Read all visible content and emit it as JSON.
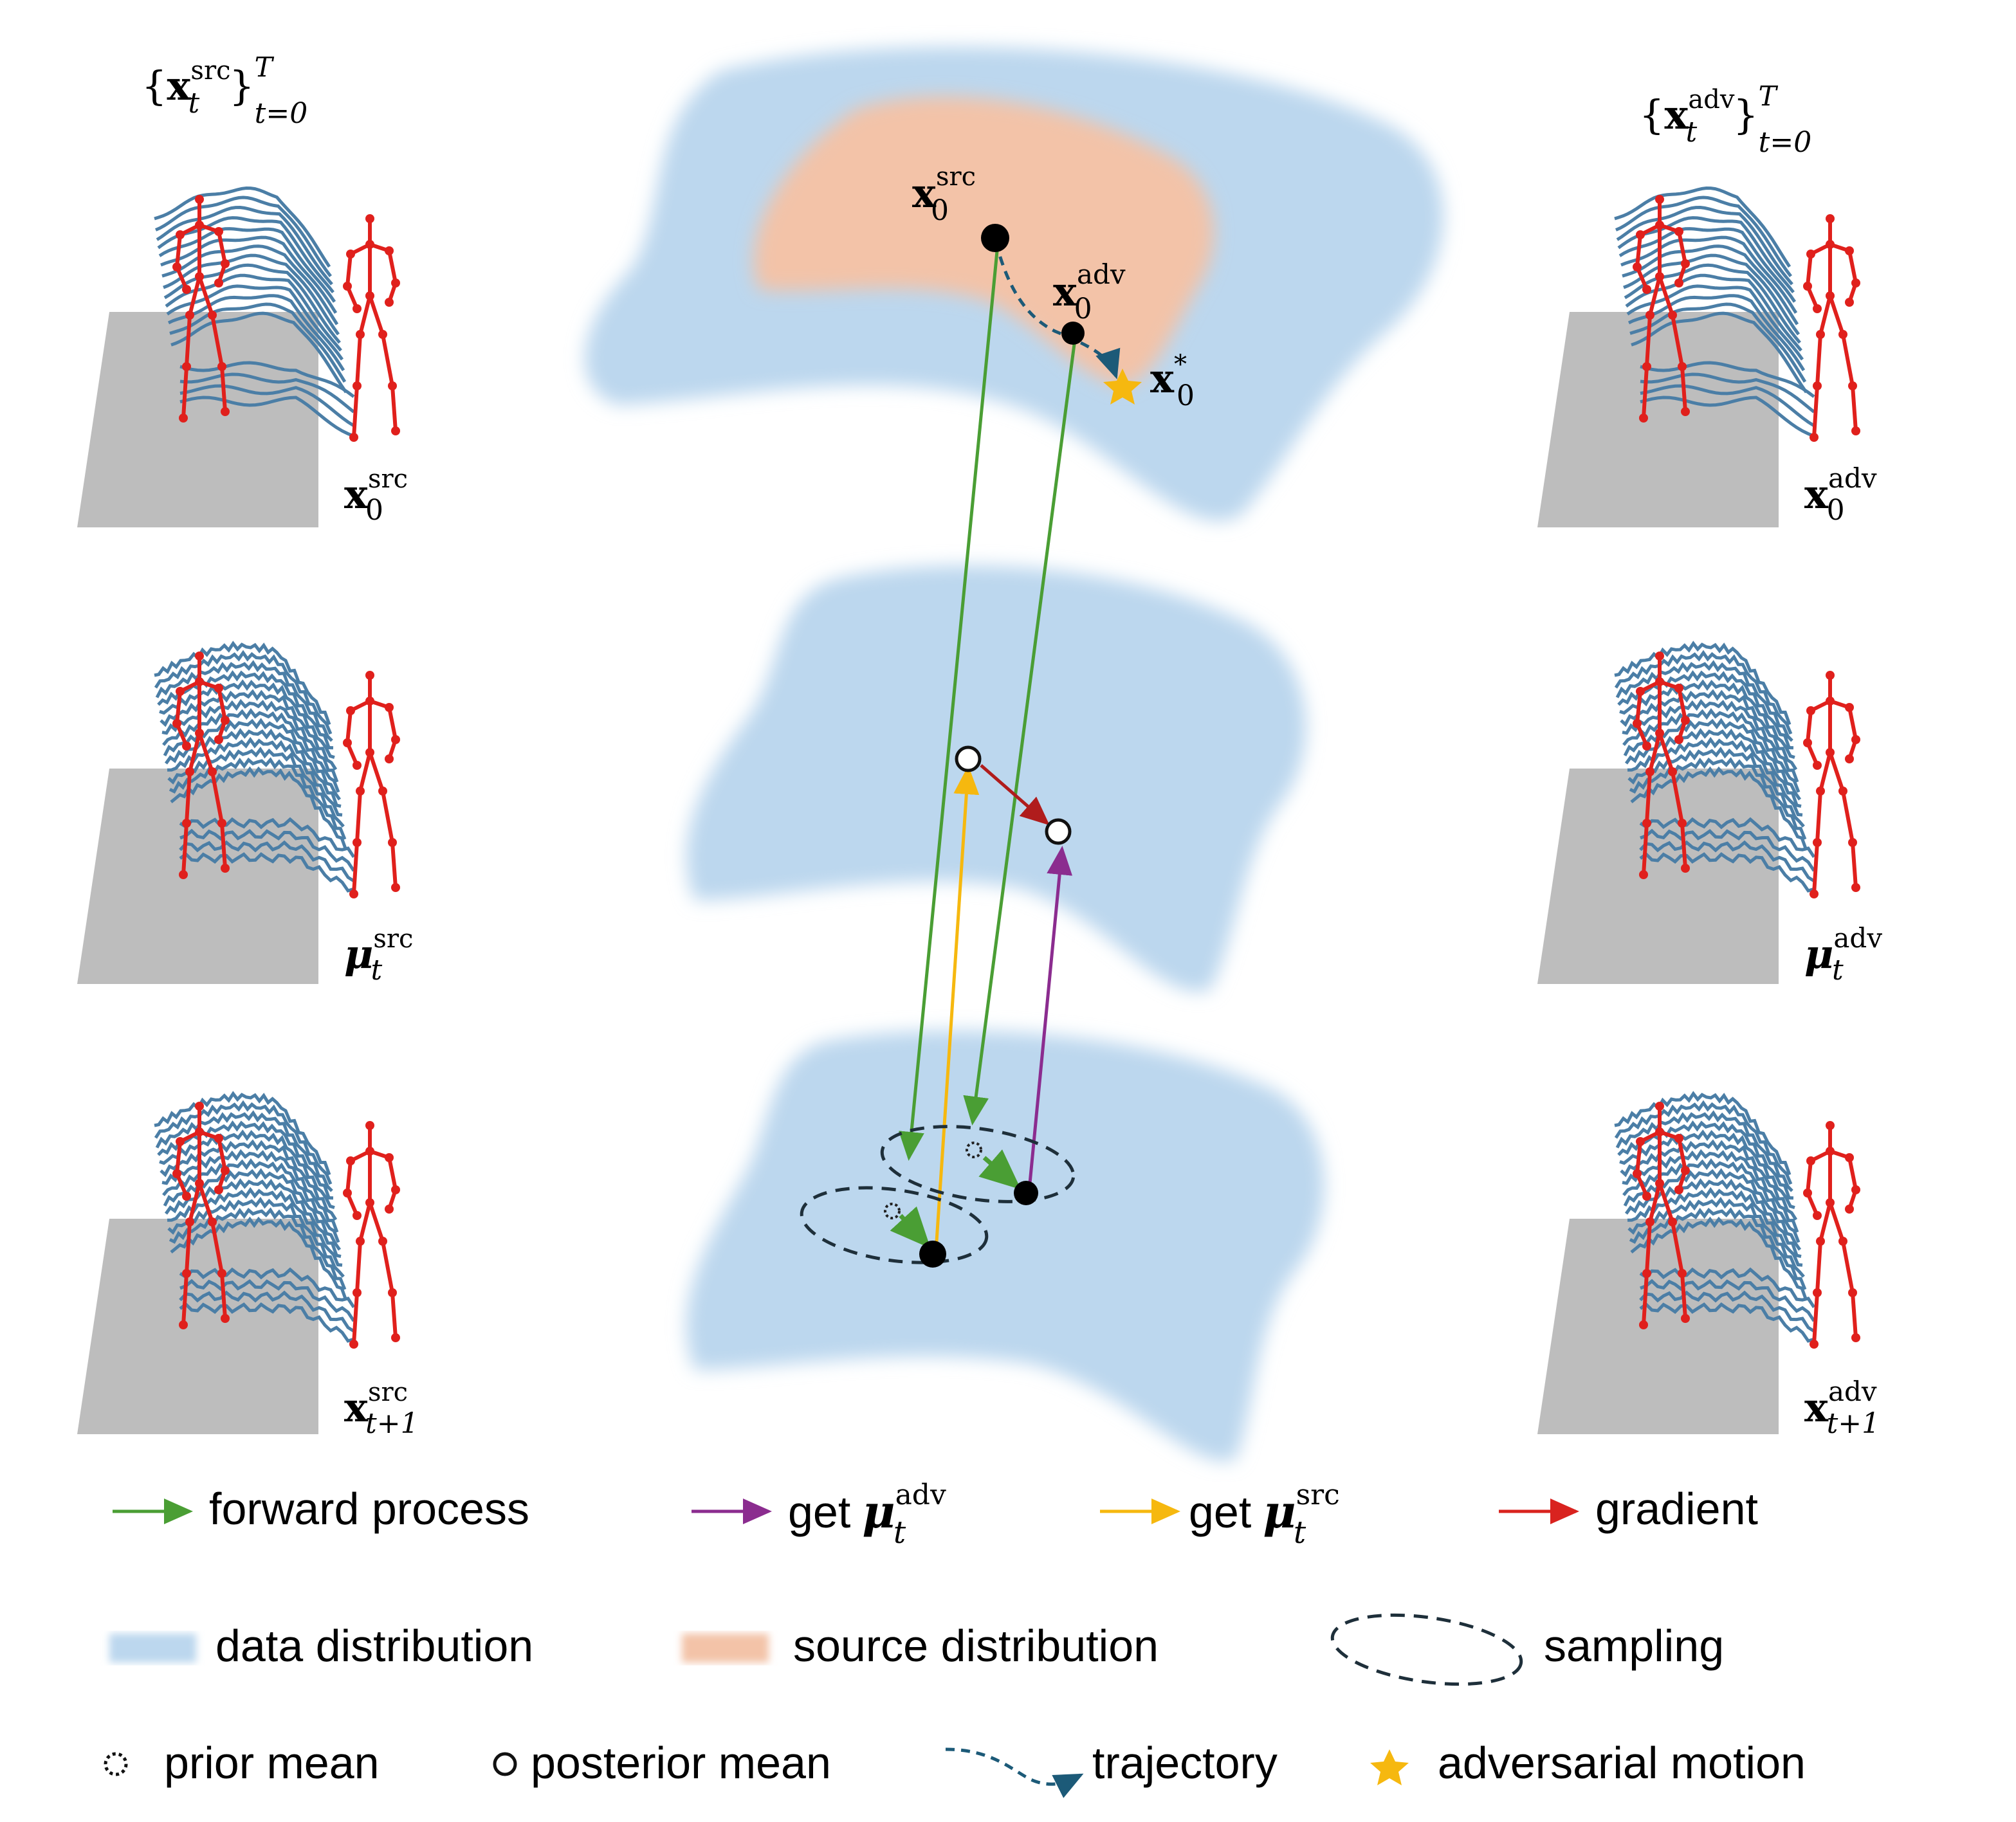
{
  "colors": {
    "data_distribution": "#bcd7ee",
    "source_distribution": "#f3c3a8",
    "forward": "#4a9e34",
    "get_mu_adv": "#8b2c8f",
    "get_mu_src": "#f6b80f",
    "gradient": "#d9231f",
    "skeleton": "#e0201c",
    "trace": "#4b7ea6",
    "floor": "#bdbdbd",
    "trajectory": "#1c5a78",
    "star": "#f6b80f"
  },
  "panels": {
    "left_title": {
      "brace_open": "{",
      "base": "x",
      "sup": "src",
      "sub": "t",
      "brace_close": "}",
      "range_sup": "T",
      "range_sub": "t=0"
    },
    "right_title": {
      "brace_open": "{",
      "base": "x",
      "sup": "adv",
      "sub": "t",
      "brace_close": "}",
      "range_sup": "T",
      "range_sub": "t=0"
    },
    "left": [
      {
        "base": "x",
        "sup": "src",
        "sub": "0",
        "icon": "skeleton-motion"
      },
      {
        "base": "μ",
        "sup": "src",
        "sub": "t",
        "icon": "skeleton-motion"
      },
      {
        "base": "x",
        "sup": "src",
        "sub": "t+1",
        "icon": "skeleton-motion"
      }
    ],
    "right": [
      {
        "base": "x",
        "sup": "adv",
        "sub": "0",
        "icon": "skeleton-motion"
      },
      {
        "base": "μ",
        "sup": "adv",
        "sub": "t",
        "icon": "skeleton-motion"
      },
      {
        "base": "x",
        "sup": "adv",
        "sub": "t+1",
        "icon": "skeleton-motion"
      }
    ]
  },
  "center": {
    "x0_src": {
      "base": "x",
      "sup": "src",
      "sub": "0"
    },
    "x0_adv": {
      "base": "x",
      "sup": "adv",
      "sub": "0"
    },
    "x0_star": {
      "base": "x",
      "sup": "*",
      "sub": "0"
    }
  },
  "legend": {
    "forward_process": "forward process",
    "get_mu_adv": {
      "prefix": "get",
      "base": "μ",
      "sup": "adv",
      "sub": "t"
    },
    "get_mu_src": {
      "prefix": "get",
      "base": "μ",
      "sup": "src",
      "sub": "t"
    },
    "gradient": "gradient",
    "data_distribution": "data distribution",
    "source_distribution": "source distribution",
    "sampling": "sampling",
    "prior_mean": "prior mean",
    "posterior_mean": "posterior mean",
    "trajectory": "trajectory",
    "adversarial_motion": "adversarial motion"
  }
}
